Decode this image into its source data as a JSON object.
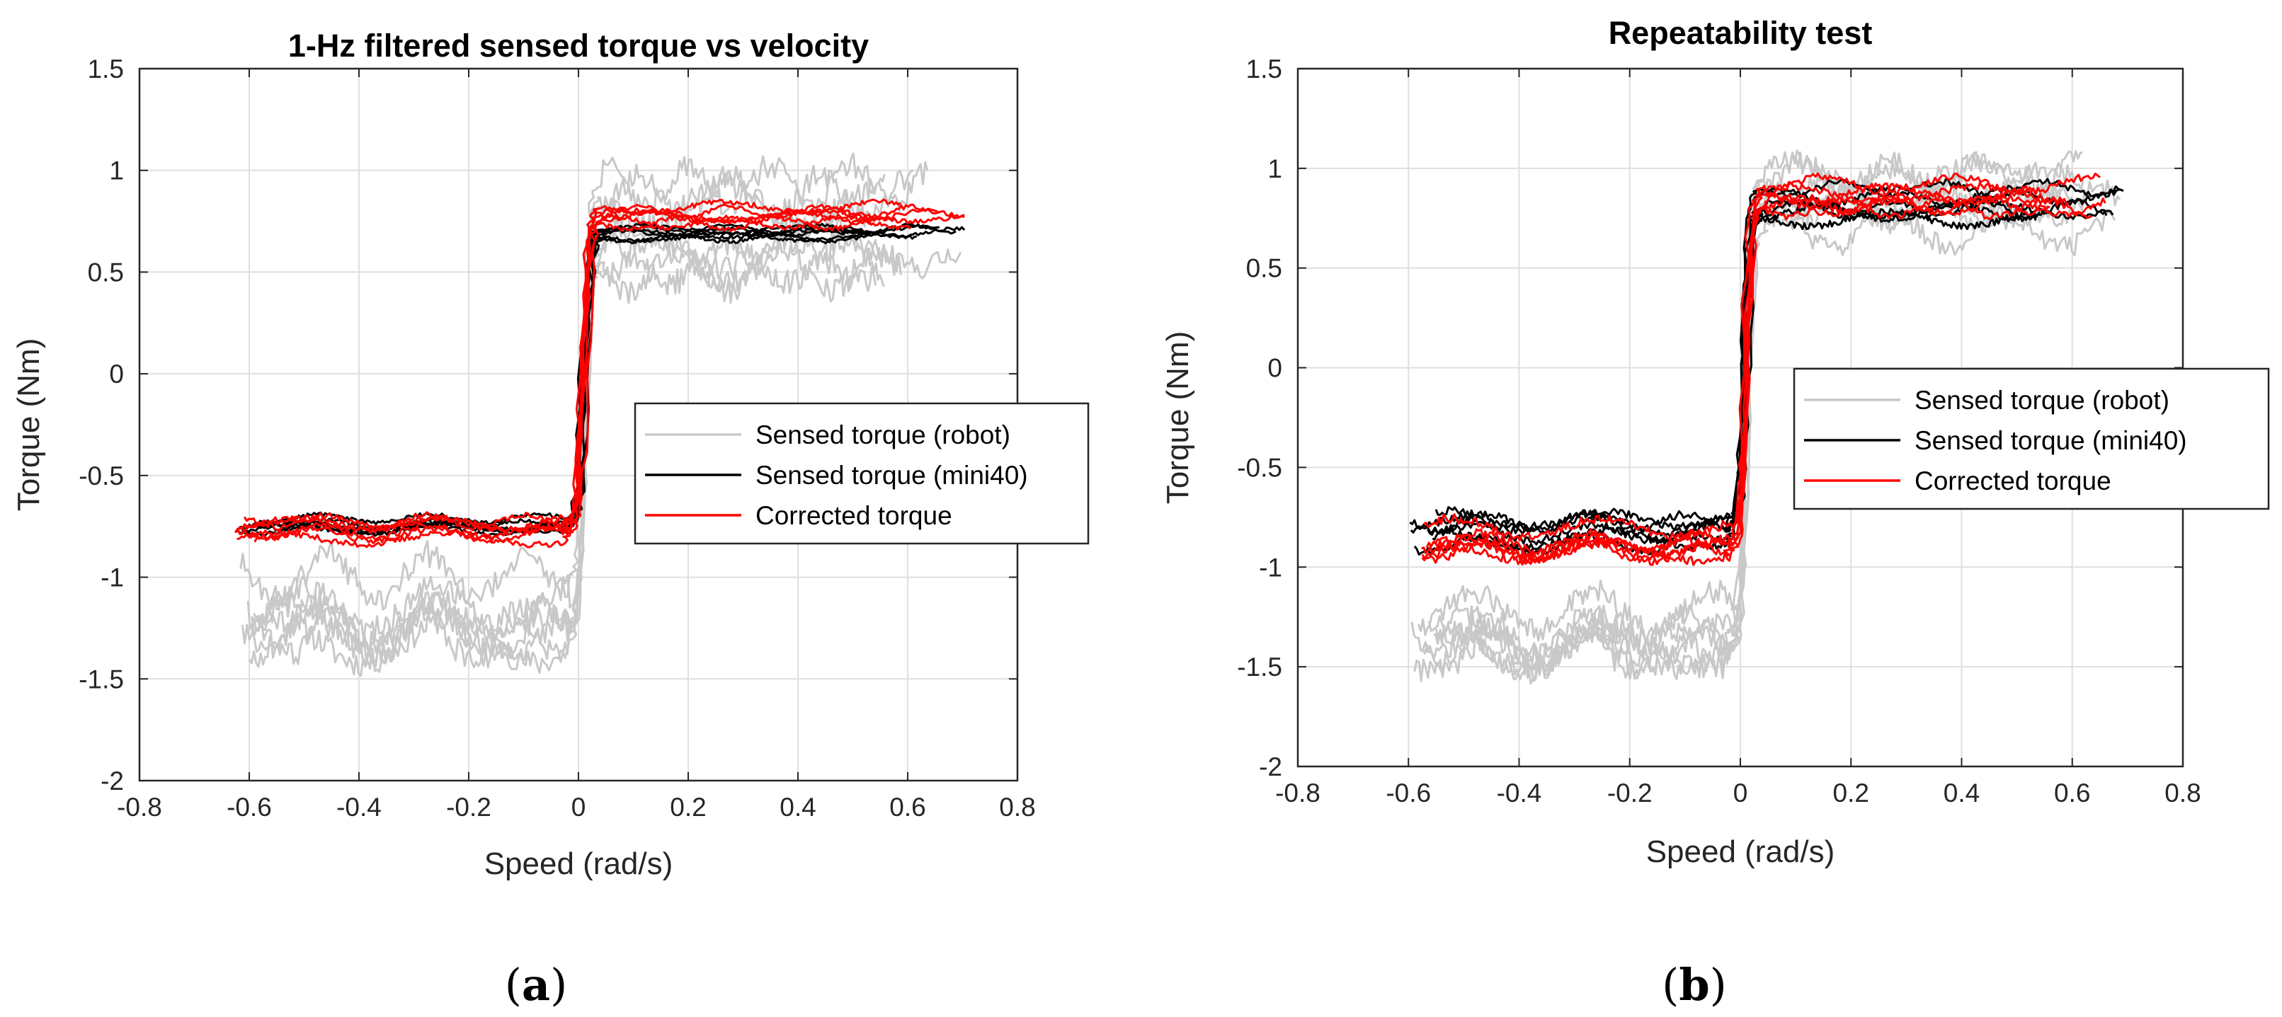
{
  "chart_data": [
    {
      "id": "a",
      "type": "line",
      "title": "1-Hz filtered sensed torque vs velocity",
      "xlabel": "Speed (rad/s)",
      "ylabel": "Torque (Nm)",
      "xlim": [
        -0.8,
        0.8
      ],
      "ylim": [
        -2,
        1.5
      ],
      "xticks": [
        -0.8,
        -0.6,
        -0.4,
        -0.2,
        0,
        0.2,
        0.4,
        0.6,
        0.8
      ],
      "xtick_labels": [
        "-0.8",
        "-0.6",
        "-0.4",
        "-0.2",
        "0",
        "0.2",
        "0.4",
        "0.6",
        "0.8"
      ],
      "yticks": [
        -2,
        -1.5,
        -1,
        -0.5,
        0,
        0.5,
        1,
        1.5
      ],
      "ytick_labels": [
        "-2",
        "-1.5",
        "-1",
        "-0.5",
        "0",
        "0.5",
        "1",
        "1.5"
      ],
      "grid": true,
      "legend_position": "right-center",
      "caption": "a",
      "series": [
        {
          "name": "Sensed torque (robot)",
          "color": "#c8c8c8",
          "low_plateau": -1.2,
          "high_plateau": 0.72,
          "spread": 0.22,
          "x_min": -0.63,
          "x_max": 0.71,
          "seed": 11
        },
        {
          "name": "Sensed torque (mini40)",
          "color": "#000000",
          "low_plateau": -0.74,
          "high_plateau": 0.7,
          "spread": 0.04,
          "x_min": -0.63,
          "x_max": 0.71,
          "seed": 23
        },
        {
          "name": "Corrected torque",
          "color": "#ff0000",
          "low_plateau": -0.78,
          "high_plateau": 0.76,
          "spread": 0.06,
          "x_min": -0.63,
          "x_max": 0.71,
          "seed": 37
        }
      ]
    },
    {
      "id": "b",
      "type": "line",
      "title": "Repeatability test",
      "xlabel": "Speed (rad/s)",
      "ylabel": "Torque (Nm)",
      "xlim": [
        -0.8,
        0.8
      ],
      "ylim": [
        -2,
        1.5
      ],
      "xticks": [
        -0.8,
        -0.6,
        -0.4,
        -0.2,
        0,
        0.2,
        0.4,
        0.6,
        0.8
      ],
      "xtick_labels": [
        "-0.8",
        "-0.6",
        "-0.4",
        "-0.2",
        "0",
        "0.2",
        "0.4",
        "0.6",
        "0.8"
      ],
      "yticks": [
        -2,
        -1.5,
        -1,
        -0.5,
        0,
        0.5,
        1,
        1.5
      ],
      "ytick_labels": [
        "-2",
        "-1.5",
        "-1",
        "-0.5",
        "0",
        "0.5",
        "1",
        "1.5"
      ],
      "grid": true,
      "legend_position": "right-center",
      "caption": "b",
      "series": [
        {
          "name": "Sensed torque (robot)",
          "color": "#c8c8c8",
          "low_plateau": -1.3,
          "high_plateau": 0.78,
          "spread": 0.2,
          "x_min": -0.6,
          "x_max": 0.7,
          "seed": 51
        },
        {
          "name": "Sensed torque (mini40)",
          "color": "#000000",
          "low_plateau": -0.82,
          "high_plateau": 0.82,
          "spread": 0.08,
          "x_min": -0.6,
          "x_max": 0.7,
          "seed": 67
        },
        {
          "name": "Corrected torque",
          "color": "#ff0000",
          "low_plateau": -0.88,
          "high_plateau": 0.88,
          "spread": 0.09,
          "x_min": -0.6,
          "x_max": 0.7,
          "seed": 79
        }
      ]
    }
  ]
}
